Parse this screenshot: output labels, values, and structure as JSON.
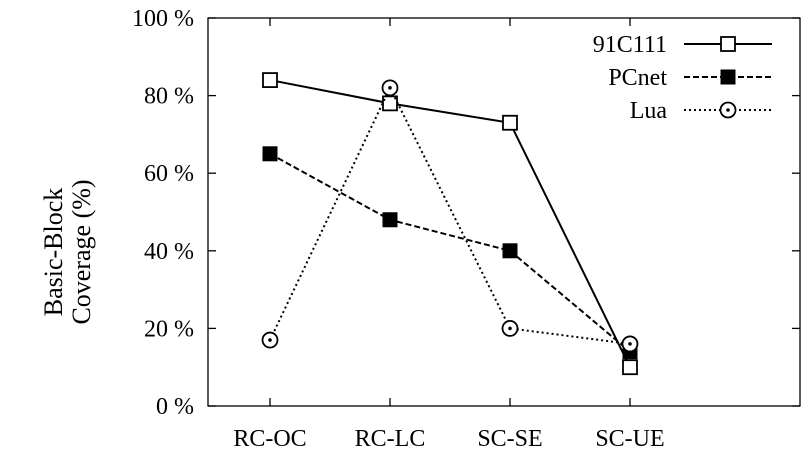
{
  "chart_data": {
    "type": "line",
    "categories": [
      "RC-OC",
      "RC-LC",
      "SC-SE",
      "SC-UE"
    ],
    "series": [
      {
        "name": "91C111",
        "values": [
          84,
          78,
          73,
          10
        ],
        "marker": "open-square",
        "line_style": "solid"
      },
      {
        "name": "PCnet",
        "values": [
          65,
          48,
          40,
          14
        ],
        "marker": "filled-square",
        "line_style": "dashed"
      },
      {
        "name": "Lua",
        "values": [
          17,
          82,
          20,
          16
        ],
        "marker": "open-circle",
        "line_style": "dotted"
      }
    ],
    "ylabel_line1": "Basic-Block",
    "ylabel_line2": "Coverage (%)",
    "yticks": [
      0,
      20,
      40,
      60,
      80,
      100
    ],
    "ytick_labels": [
      "0 %",
      "20 %",
      "40 %",
      "60 %",
      "80 %",
      "100 %"
    ],
    "ylim": [
      0,
      100
    ],
    "grid": false,
    "legend_position": "top-right",
    "color": "#000000"
  }
}
